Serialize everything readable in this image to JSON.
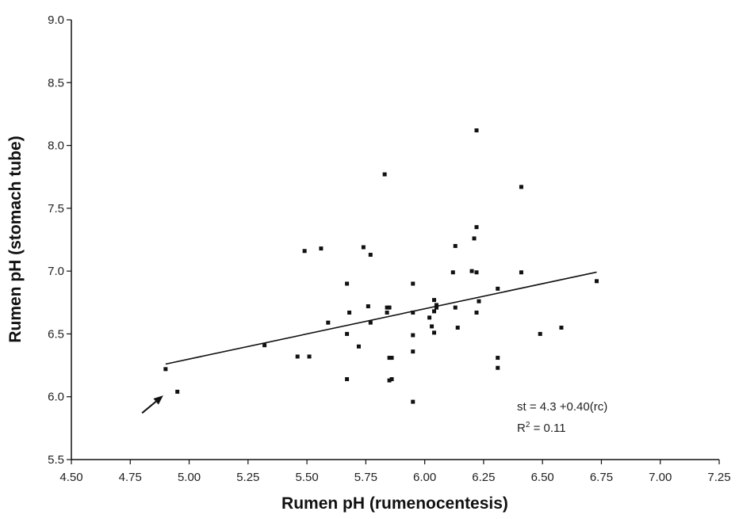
{
  "chart_data": {
    "type": "scatter",
    "xlabel": "Rumen pH  (rumenocentesis)",
    "ylabel": "Rumen pH (stomach tube)",
    "xlim": [
      4.5,
      7.25
    ],
    "ylim": [
      5.5,
      9.0
    ],
    "x_ticks": [
      "4.50",
      "4.75",
      "5.00",
      "5.25",
      "5.50",
      "5.75",
      "6.00",
      "6.25",
      "6.50",
      "6.75",
      "7.00",
      "7.25"
    ],
    "y_ticks": [
      "5.5",
      "6.0",
      "6.5",
      "7.0",
      "7.5",
      "8.0",
      "8.5",
      "9.0"
    ],
    "grid": false,
    "legend": "none",
    "points": [
      {
        "x": 4.9,
        "y": 6.22
      },
      {
        "x": 4.95,
        "y": 6.04
      },
      {
        "x": 5.32,
        "y": 6.41
      },
      {
        "x": 5.46,
        "y": 6.32
      },
      {
        "x": 5.49,
        "y": 7.16
      },
      {
        "x": 5.51,
        "y": 6.32
      },
      {
        "x": 5.56,
        "y": 7.18
      },
      {
        "x": 5.59,
        "y": 6.59
      },
      {
        "x": 5.67,
        "y": 6.9
      },
      {
        "x": 5.68,
        "y": 6.67
      },
      {
        "x": 5.67,
        "y": 6.5
      },
      {
        "x": 5.67,
        "y": 6.14
      },
      {
        "x": 5.72,
        "y": 6.4
      },
      {
        "x": 5.74,
        "y": 7.19
      },
      {
        "x": 5.76,
        "y": 6.72
      },
      {
        "x": 5.77,
        "y": 7.13
      },
      {
        "x": 5.77,
        "y": 6.59
      },
      {
        "x": 5.83,
        "y": 7.77
      },
      {
        "x": 5.84,
        "y": 6.71
      },
      {
        "x": 5.84,
        "y": 6.67
      },
      {
        "x": 5.85,
        "y": 6.71
      },
      {
        "x": 5.85,
        "y": 6.31
      },
      {
        "x": 5.85,
        "y": 6.13
      },
      {
        "x": 5.86,
        "y": 6.31
      },
      {
        "x": 5.86,
        "y": 6.14
      },
      {
        "x": 5.95,
        "y": 6.9
      },
      {
        "x": 5.95,
        "y": 6.67
      },
      {
        "x": 5.95,
        "y": 6.49
      },
      {
        "x": 5.95,
        "y": 6.36
      },
      {
        "x": 5.95,
        "y": 5.96
      },
      {
        "x": 6.02,
        "y": 6.63
      },
      {
        "x": 6.03,
        "y": 6.56
      },
      {
        "x": 6.04,
        "y": 6.51
      },
      {
        "x": 6.04,
        "y": 6.77
      },
      {
        "x": 6.05,
        "y": 6.73
      },
      {
        "x": 6.04,
        "y": 6.68
      },
      {
        "x": 6.05,
        "y": 6.71
      },
      {
        "x": 6.12,
        "y": 6.99
      },
      {
        "x": 6.13,
        "y": 7.2
      },
      {
        "x": 6.13,
        "y": 6.71
      },
      {
        "x": 6.14,
        "y": 6.55
      },
      {
        "x": 6.2,
        "y": 7.0
      },
      {
        "x": 6.21,
        "y": 7.26
      },
      {
        "x": 6.22,
        "y": 8.12
      },
      {
        "x": 6.22,
        "y": 7.35
      },
      {
        "x": 6.22,
        "y": 6.99
      },
      {
        "x": 6.22,
        "y": 6.67
      },
      {
        "x": 6.23,
        "y": 6.76
      },
      {
        "x": 6.31,
        "y": 6.86
      },
      {
        "x": 6.31,
        "y": 6.31
      },
      {
        "x": 6.31,
        "y": 6.23
      },
      {
        "x": 6.41,
        "y": 7.67
      },
      {
        "x": 6.41,
        "y": 6.99
      },
      {
        "x": 6.49,
        "y": 6.5
      },
      {
        "x": 6.58,
        "y": 6.55
      },
      {
        "x": 6.73,
        "y": 6.92
      }
    ],
    "regression": {
      "intercept": 4.3,
      "slope": 0.4,
      "x_range": [
        4.9,
        6.73
      ]
    },
    "annotations": {
      "equation": "st = 4.3 +0.40(rc)",
      "r2_prefix": "R",
      "r2_sup": "2",
      "r2_suffix": " = 0.11"
    },
    "arrow": {
      "from": [
        4.8,
        5.87
      ],
      "to": [
        4.89,
        6.01
      ]
    }
  }
}
